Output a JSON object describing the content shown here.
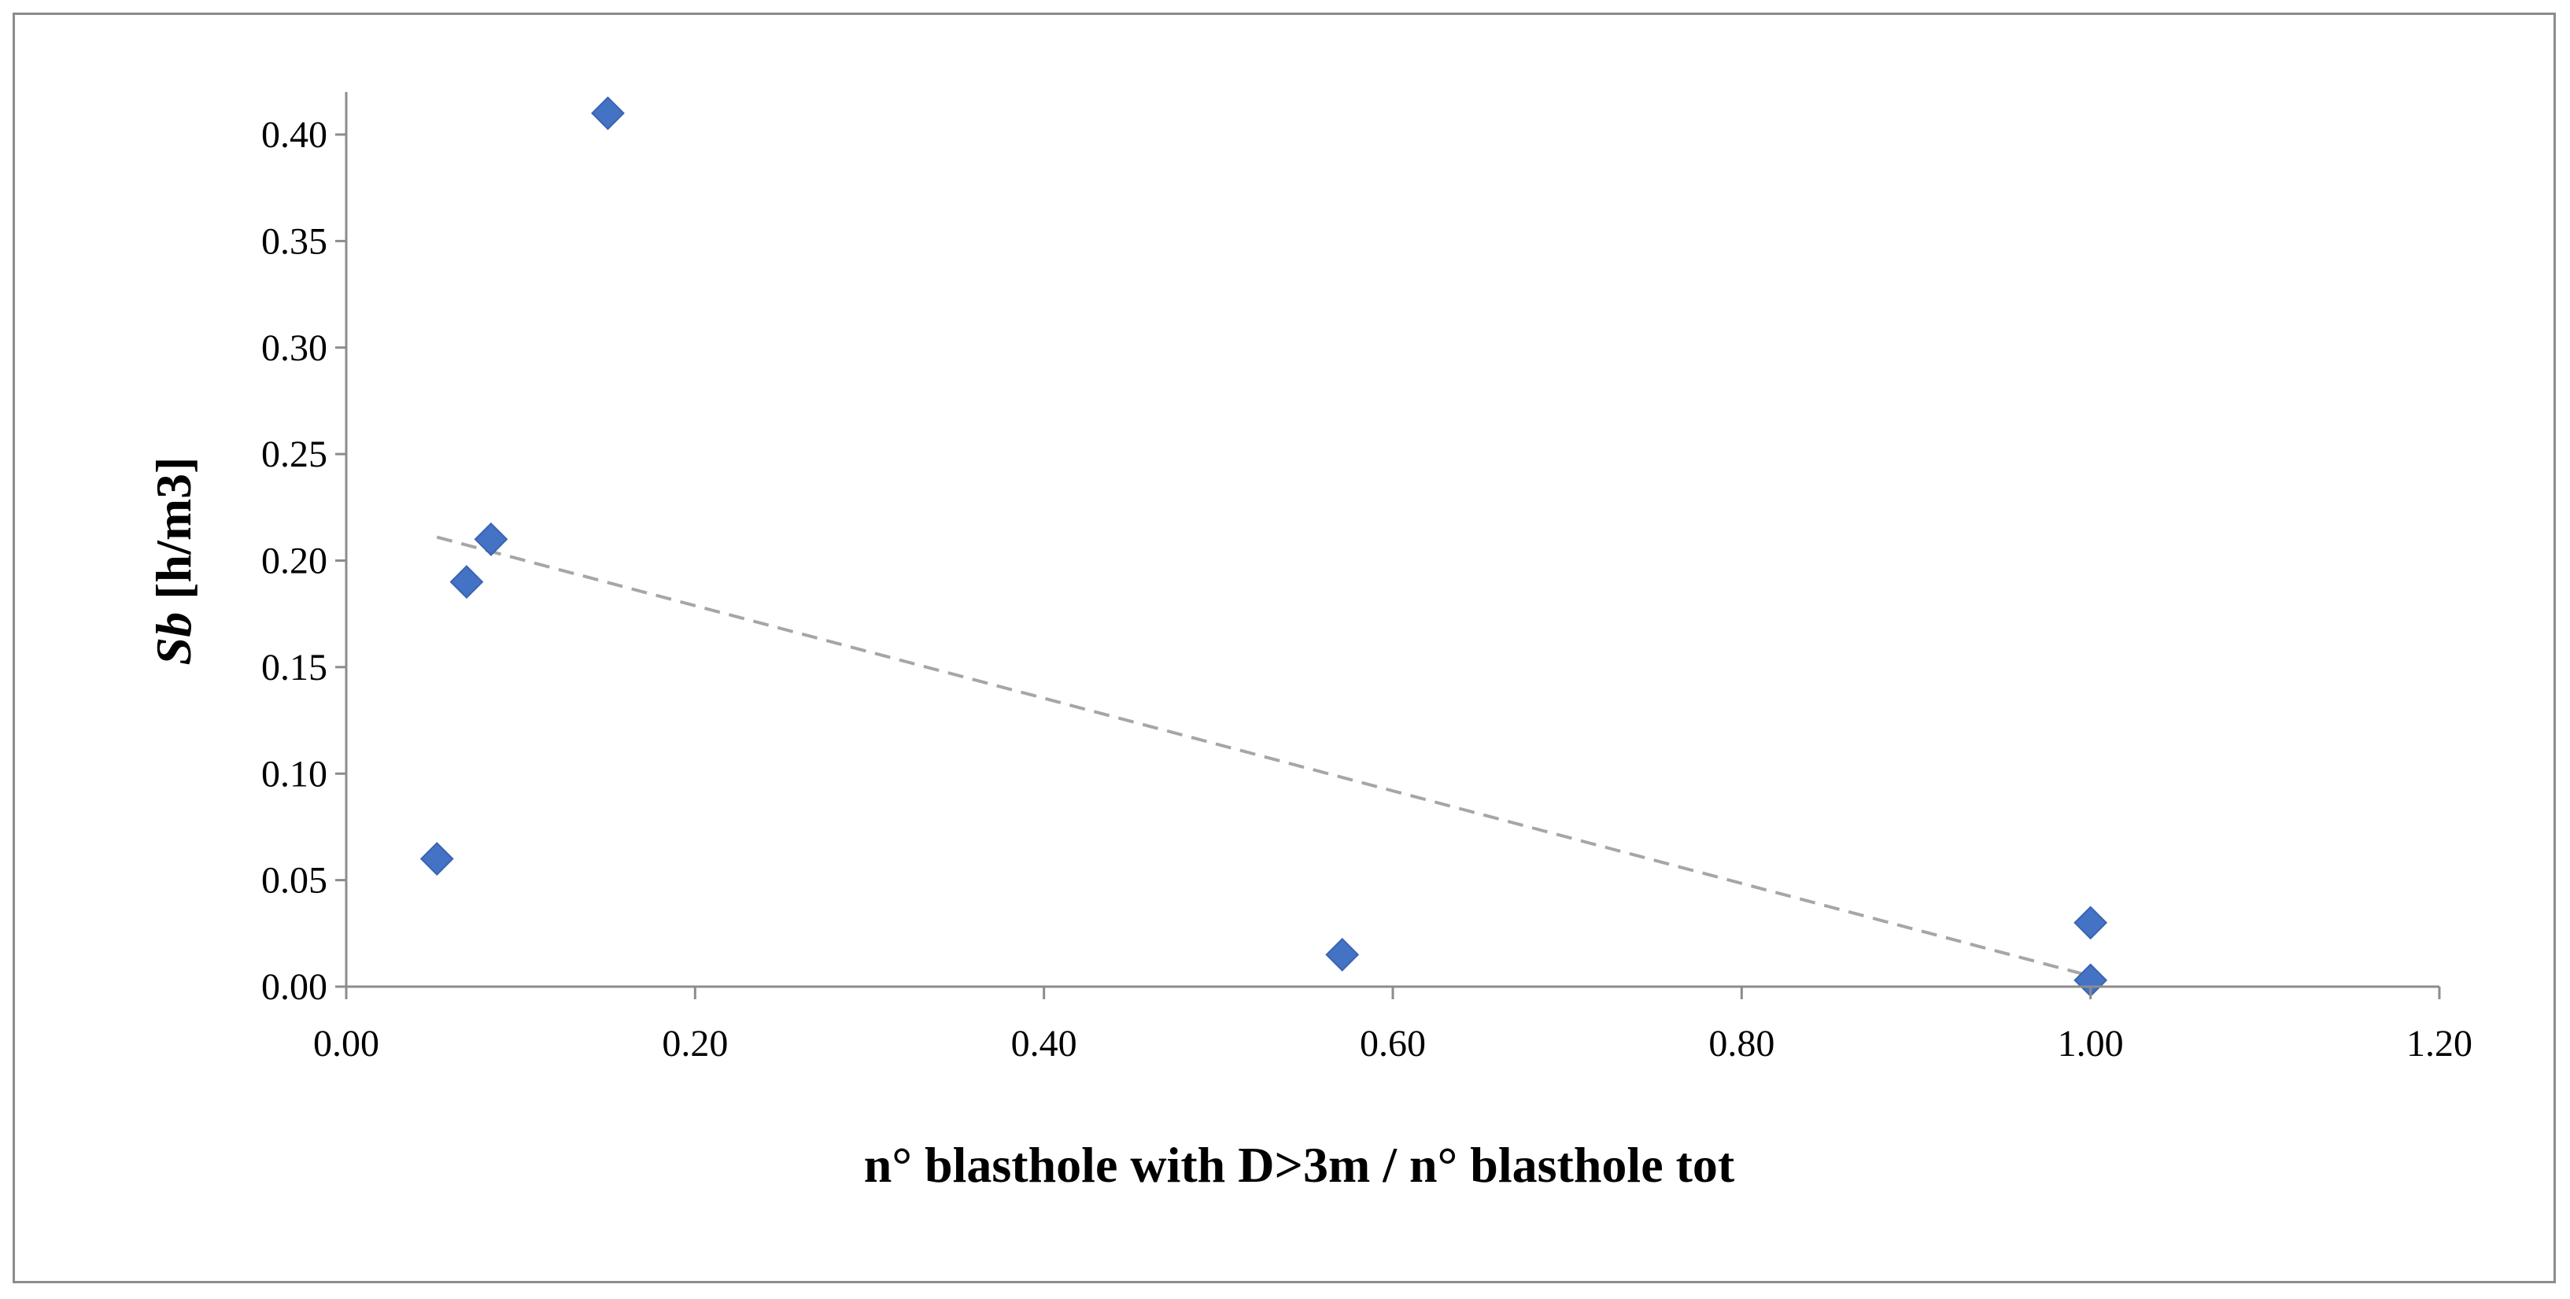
{
  "chart_data": {
    "type": "scatter",
    "title": "",
    "xlabel": "n° blasthole with D>3m / n° blasthole tot",
    "ylabel_italic": "Sb",
    "ylabel_rest": " [h/m3]",
    "xlim": [
      0,
      1.2
    ],
    "ylim": [
      0,
      0.42
    ],
    "x_ticks": [
      0,
      0.2,
      0.4,
      0.6,
      0.8,
      1.0,
      1.2
    ],
    "x_tick_labels": [
      "0.00",
      "0.20",
      "0.40",
      "0.60",
      "0.80",
      "1.00",
      "1.20"
    ],
    "y_ticks": [
      0,
      0.05,
      0.1,
      0.15,
      0.2,
      0.25,
      0.3,
      0.35,
      0.4
    ],
    "y_tick_labels": [
      "0.00",
      "0.05",
      "0.10",
      "0.15",
      "0.20",
      "0.25",
      "0.30",
      "0.35",
      "0.40"
    ],
    "grid": false,
    "legend": "none",
    "marker": "diamond",
    "series": [
      {
        "x": [
          0.052,
          0.069,
          0.083,
          0.15,
          0.571,
          1.0,
          1.0
        ],
        "y": [
          0.06,
          0.19,
          0.21,
          0.41,
          0.015,
          0.03,
          0.003
        ],
        "color": "#4472c4"
      }
    ],
    "trendline": {
      "type": "linear",
      "x": [
        0.052,
        1.0
      ],
      "y": [
        0.211,
        0.005
      ],
      "color": "#a6a6a6",
      "style": "dashed"
    },
    "axis_color": "#8c8c8c"
  }
}
